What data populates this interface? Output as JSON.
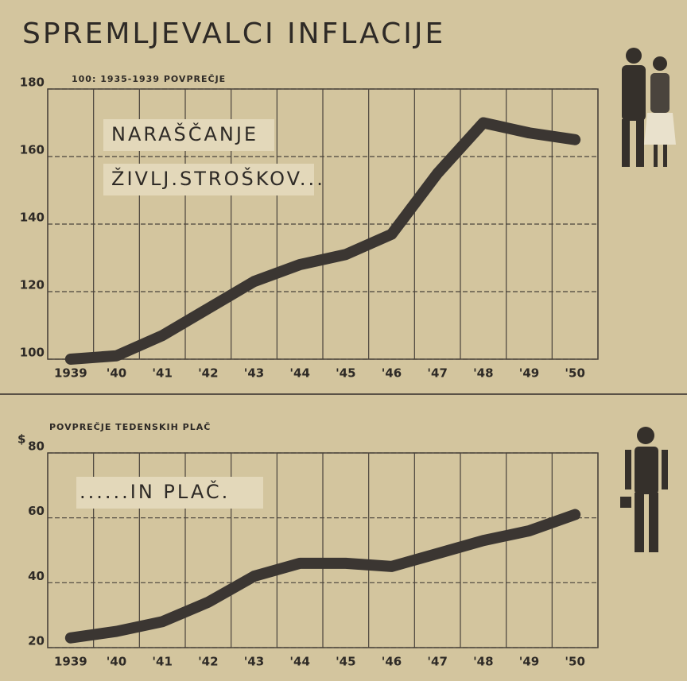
{
  "title": "SPREMLJEVALCI INFLACIJE",
  "chart_data": [
    {
      "type": "line",
      "annotations": [
        "100: 1935-1939 POVPREČJE",
        "NARAŠČANJE",
        "ŽIVLJ.STROŠKOV..."
      ],
      "categories": [
        "1939",
        "'40",
        "'41",
        "'42",
        "'43",
        "'44",
        "'45",
        "'46",
        "'47",
        "'48",
        "'49",
        "'50"
      ],
      "values": [
        100,
        101,
        107,
        115,
        123,
        128,
        131,
        137,
        155,
        170,
        167,
        165
      ],
      "color": "#3b3632",
      "ylim": [
        100,
        180
      ],
      "yticks": [
        100,
        120,
        140,
        160,
        180
      ],
      "grid": true
    },
    {
      "type": "line",
      "y_label": "$",
      "annotations": [
        "POVPREČJE TEDENSKIH PLAČ",
        "......IN PLAČ."
      ],
      "categories": [
        "1939",
        "'40",
        "'41",
        "'42",
        "'43",
        "'44",
        "'45",
        "'46",
        "'47",
        "'48",
        "'49",
        "'50"
      ],
      "values": [
        23,
        25,
        28,
        34,
        42,
        46,
        46,
        45,
        49,
        53,
        56,
        61
      ],
      "color": "#3b3632",
      "ylim": [
        20,
        80
      ],
      "yticks": [
        20,
        40,
        60,
        80
      ],
      "grid": true
    }
  ]
}
